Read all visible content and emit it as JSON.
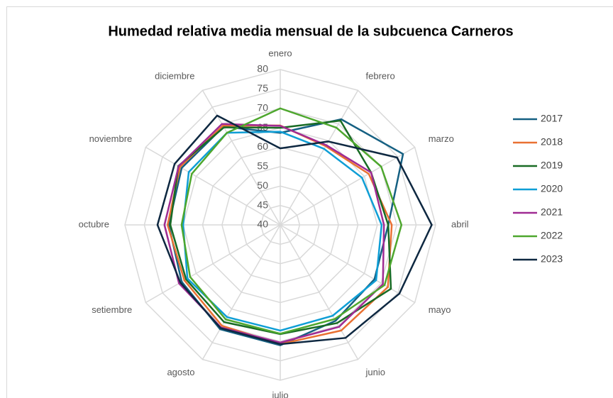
{
  "chart_data": {
    "type": "radar",
    "title": "Humedad relativa media mensual de la subcuenca Carneros",
    "categories": [
      "enero",
      "febrero",
      "marzo",
      "abril",
      "mayo",
      "junio",
      "julio",
      "agosto",
      "setiembre",
      "octubre",
      "noviembre",
      "diciembre"
    ],
    "ylim": [
      40,
      80
    ],
    "yticks": [
      40,
      45,
      50,
      55,
      60,
      65,
      70,
      75,
      80
    ],
    "grid": true,
    "legend": "right",
    "series": [
      {
        "name": "2017",
        "color": "#156082",
        "values": [
          63.7,
          71.4,
          76.5,
          67.8,
          68,
          68.5,
          71,
          71,
          69.3,
          68.7,
          69.3,
          69.2
        ]
      },
      {
        "name": "2018",
        "color": "#e97132",
        "values": [
          65.6,
          63.4,
          66.3,
          68.7,
          72,
          71.4,
          70.7,
          70,
          68.5,
          69,
          69.8,
          69.5
        ]
      },
      {
        "name": "2019",
        "color": "#196b24",
        "values": [
          65,
          71,
          67,
          67.8,
          72.9,
          69.2,
          68.1,
          68.9,
          68,
          68.3,
          70.3,
          69
        ]
      },
      {
        "name": "2020",
        "color": "#0f9ed5",
        "values": [
          64,
          62.6,
          64.3,
          66.1,
          68.5,
          67,
          67.2,
          67.4,
          67.6,
          65,
          67.2,
          67.4
        ]
      },
      {
        "name": "2021",
        "color": "#a02b93",
        "values": [
          65.5,
          63.7,
          67,
          66.7,
          70.5,
          70.3,
          70.3,
          70.5,
          70.1,
          69.8,
          70.2,
          70
        ]
      },
      {
        "name": "2022",
        "color": "#4ea72e",
        "values": [
          70,
          68.9,
          70,
          71.2,
          71,
          68,
          68,
          68.1,
          66.8,
          65.4,
          66.3,
          67.4
        ]
      },
      {
        "name": "2023",
        "color": "#0e2841",
        "values": [
          59.7,
          64.8,
          74.7,
          79,
          75.4,
          73.6,
          70.7,
          70.7,
          69.7,
          71.6,
          71.4,
          72.5
        ]
      }
    ]
  }
}
